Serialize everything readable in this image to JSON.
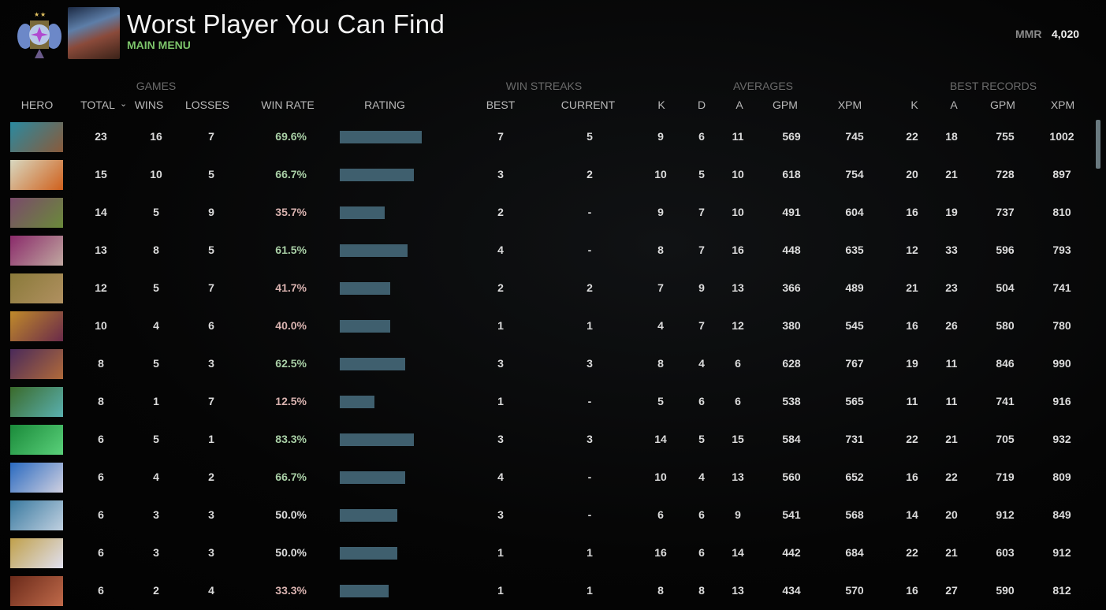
{
  "header": {
    "title": "Worst Player You Can Find",
    "subtitle": "MAIN MENU",
    "mmr_label": "MMR",
    "mmr_value": "4,020",
    "rank_icon": "rank-medal-icon"
  },
  "groups": {
    "games": "GAMES",
    "win_streaks": "WIN STREAKS",
    "averages": "AVERAGES",
    "best_records": "BEST RECORDS"
  },
  "columns": {
    "hero": "HERO",
    "total": "TOTAL",
    "wins": "WINS",
    "losses": "LOSSES",
    "win_rate": "WIN RATE",
    "rating": "RATING",
    "best": "BEST",
    "current": "CURRENT",
    "k": "K",
    "d": "D",
    "a": "A",
    "gpm": "GPM",
    "xpm": "XPM",
    "best_k": "K",
    "best_a": "A",
    "best_gpm": "GPM",
    "best_xpm": "XPM"
  },
  "colors": {
    "win_good": "#a9cfa6",
    "win_bad": "#d9b3b0",
    "bar": "#3f5f6e",
    "menu": "#7cc46a"
  },
  "rows": [
    {
      "total": "23",
      "wins": "16",
      "losses": "7",
      "win_rate": "69.6%",
      "rating": 0.8,
      "best": "7",
      "current": "5",
      "k": "9",
      "d": "6",
      "a": "11",
      "gpm": "569",
      "xpm": "745",
      "bk": "22",
      "ba": "18",
      "bgpm": "755",
      "bxpm": "1002",
      "portrait": [
        "#2a8aa0",
        "#8a5a3a"
      ]
    },
    {
      "total": "15",
      "wins": "10",
      "losses": "5",
      "win_rate": "66.7%",
      "rating": 0.72,
      "best": "3",
      "current": "2",
      "k": "10",
      "d": "5",
      "a": "10",
      "gpm": "618",
      "xpm": "754",
      "bk": "20",
      "ba": "21",
      "bgpm": "728",
      "bxpm": "897",
      "portrait": [
        "#d8d8c0",
        "#d0601c"
      ]
    },
    {
      "total": "14",
      "wins": "5",
      "losses": "9",
      "win_rate": "35.7%",
      "rating": 0.44,
      "best": "2",
      "current": "-",
      "k": "9",
      "d": "7",
      "a": "10",
      "gpm": "491",
      "xpm": "604",
      "bk": "16",
      "ba": "19",
      "bgpm": "737",
      "bxpm": "810",
      "portrait": [
        "#7a4a6a",
        "#6a8a3a"
      ]
    },
    {
      "total": "13",
      "wins": "8",
      "losses": "5",
      "win_rate": "61.5%",
      "rating": 0.66,
      "best": "4",
      "current": "-",
      "k": "8",
      "d": "7",
      "a": "16",
      "gpm": "448",
      "xpm": "635",
      "bk": "12",
      "ba": "33",
      "bgpm": "596",
      "bxpm": "793",
      "portrait": [
        "#8a2a6a",
        "#c0a8a0"
      ]
    },
    {
      "total": "12",
      "wins": "5",
      "losses": "7",
      "win_rate": "41.7%",
      "rating": 0.49,
      "best": "2",
      "current": "2",
      "k": "7",
      "d": "9",
      "a": "13",
      "gpm": "366",
      "xpm": "489",
      "bk": "21",
      "ba": "23",
      "bgpm": "504",
      "bxpm": "741",
      "portrait": [
        "#8a7a3a",
        "#b09060"
      ]
    },
    {
      "total": "10",
      "wins": "4",
      "losses": "6",
      "win_rate": "40.0%",
      "rating": 0.49,
      "best": "1",
      "current": "1",
      "k": "4",
      "d": "7",
      "a": "12",
      "gpm": "380",
      "xpm": "545",
      "bk": "16",
      "ba": "26",
      "bgpm": "580",
      "bxpm": "780",
      "portrait": [
        "#c08a2a",
        "#6a2a4a"
      ]
    },
    {
      "total": "8",
      "wins": "5",
      "losses": "3",
      "win_rate": "62.5%",
      "rating": 0.64,
      "best": "3",
      "current": "3",
      "k": "8",
      "d": "4",
      "a": "6",
      "gpm": "628",
      "xpm": "767",
      "bk": "19",
      "ba": "11",
      "bgpm": "846",
      "bxpm": "990",
      "portrait": [
        "#4a2a5a",
        "#b06a3a"
      ]
    },
    {
      "total": "8",
      "wins": "1",
      "losses": "7",
      "win_rate": "12.5%",
      "rating": 0.34,
      "best": "1",
      "current": "-",
      "k": "5",
      "d": "6",
      "a": "6",
      "gpm": "538",
      "xpm": "565",
      "bk": "11",
      "ba": "11",
      "bgpm": "741",
      "bxpm": "916",
      "portrait": [
        "#3a6a2a",
        "#5ab0b0"
      ]
    },
    {
      "total": "6",
      "wins": "5",
      "losses": "1",
      "win_rate": "83.3%",
      "rating": 0.72,
      "best": "3",
      "current": "3",
      "k": "14",
      "d": "5",
      "a": "15",
      "gpm": "584",
      "xpm": "731",
      "bk": "22",
      "ba": "21",
      "bgpm": "705",
      "bxpm": "932",
      "portrait": [
        "#1a8a3a",
        "#5ad07a"
      ]
    },
    {
      "total": "6",
      "wins": "4",
      "losses": "2",
      "win_rate": "66.7%",
      "rating": 0.64,
      "best": "4",
      "current": "-",
      "k": "10",
      "d": "4",
      "a": "13",
      "gpm": "560",
      "xpm": "652",
      "bk": "16",
      "ba": "22",
      "bgpm": "719",
      "bxpm": "809",
      "portrait": [
        "#2a6ac0",
        "#d0d0e0"
      ]
    },
    {
      "total": "6",
      "wins": "3",
      "losses": "3",
      "win_rate": "50.0%",
      "rating": 0.56,
      "best": "3",
      "current": "-",
      "k": "6",
      "d": "6",
      "a": "9",
      "gpm": "541",
      "xpm": "568",
      "bk": "14",
      "ba": "20",
      "bgpm": "912",
      "bxpm": "849",
      "portrait": [
        "#3a7aa0",
        "#c0d0e0"
      ]
    },
    {
      "total": "6",
      "wins": "3",
      "losses": "3",
      "win_rate": "50.0%",
      "rating": 0.56,
      "best": "1",
      "current": "1",
      "k": "16",
      "d": "6",
      "a": "14",
      "gpm": "442",
      "xpm": "684",
      "bk": "22",
      "ba": "21",
      "bgpm": "603",
      "bxpm": "912",
      "portrait": [
        "#c0a04a",
        "#e0e0f0"
      ]
    },
    {
      "total": "6",
      "wins": "2",
      "losses": "4",
      "win_rate": "33.3%",
      "rating": 0.48,
      "best": "1",
      "current": "1",
      "k": "8",
      "d": "8",
      "a": "13",
      "gpm": "434",
      "xpm": "570",
      "bk": "16",
      "ba": "27",
      "bgpm": "590",
      "bxpm": "812",
      "portrait": [
        "#6a2a1a",
        "#c06a4a"
      ]
    }
  ]
}
